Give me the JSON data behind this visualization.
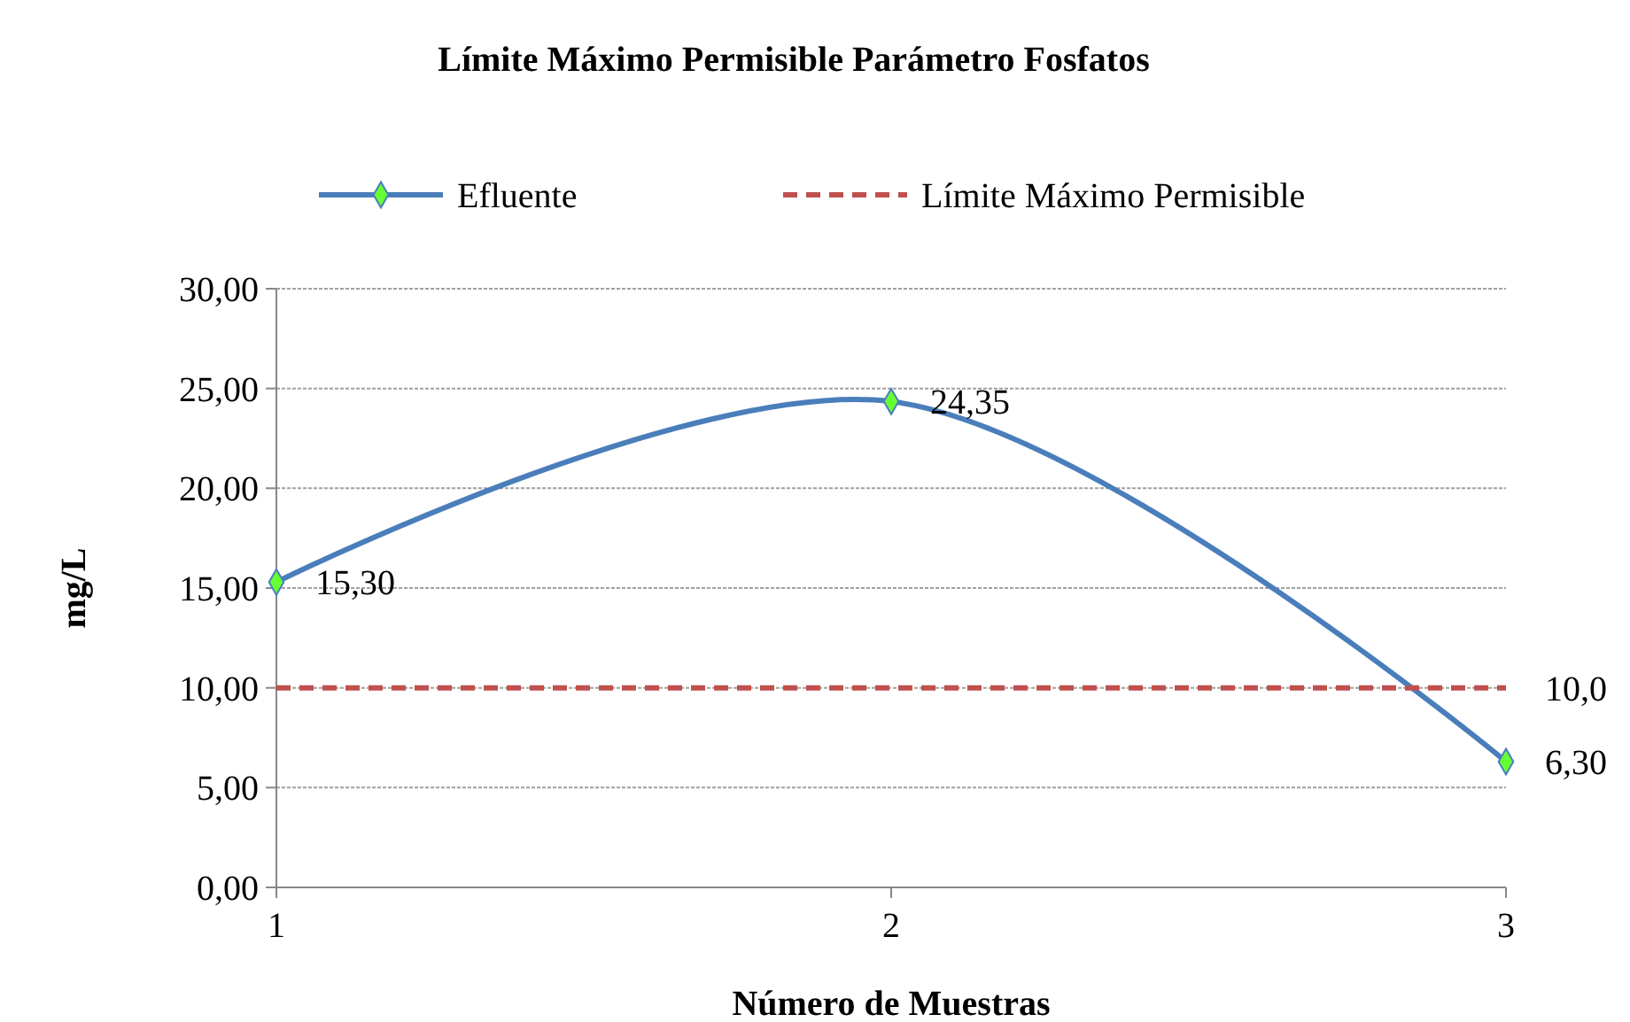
{
  "chart_data": {
    "type": "line",
    "title": "Límite Máximo Permisible Parámetro Fosfatos",
    "xlabel": "Número de Muestras",
    "ylabel": "mg/L",
    "x": [
      1,
      2,
      3
    ],
    "xlim": [
      1,
      3
    ],
    "xticks": [
      1,
      2,
      3
    ],
    "ylim": [
      0,
      30
    ],
    "yticks": [
      {
        "value": 0,
        "label": "0,00"
      },
      {
        "value": 5,
        "label": "5,00"
      },
      {
        "value": 10,
        "label": "10,00"
      },
      {
        "value": 15,
        "label": "15,00"
      },
      {
        "value": 20,
        "label": "20,00"
      },
      {
        "value": 25,
        "label": "25,00"
      },
      {
        "value": 30,
        "label": "30,00"
      }
    ],
    "grid": "y",
    "legend": "top",
    "series": [
      {
        "name": "Efluente",
        "color": "#4a7ebb",
        "values": [
          15.3,
          24.35,
          6.3
        ],
        "marker": "diamond",
        "line_style": "solid",
        "value_labels": [
          "15,30",
          "24,35",
          "6,30"
        ]
      },
      {
        "name": "Límite Máximo Permisible",
        "color": "#c0504d",
        "values": [
          10,
          10,
          10
        ],
        "marker": "none",
        "line_style": "dashed",
        "value_labels": [
          null,
          null,
          "10,0"
        ]
      }
    ]
  }
}
